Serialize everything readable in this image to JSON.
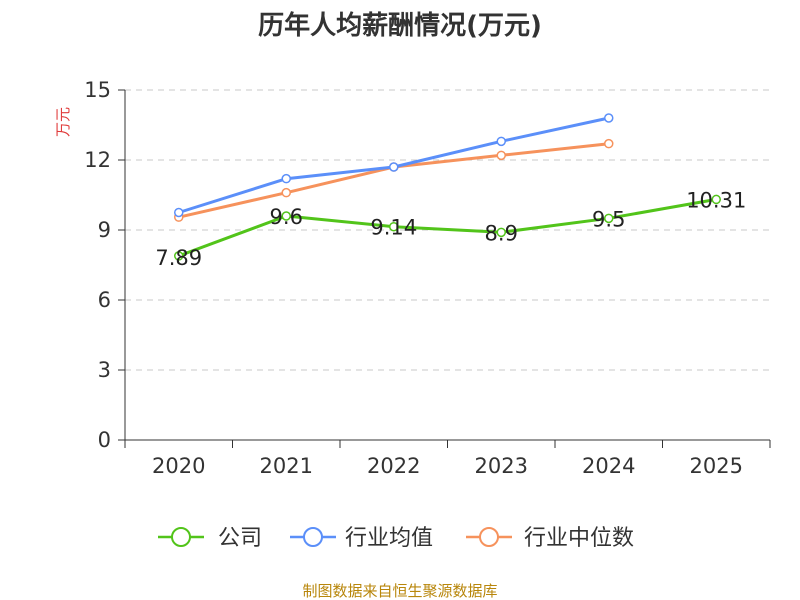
{
  "chart_data": {
    "type": "line",
    "title": "历年人均薪酬情况(万元)",
    "xlabel": "",
    "ylabel": "万元",
    "categories": [
      "2020",
      "2021",
      "2022",
      "2023",
      "2024",
      "2025"
    ],
    "ylim": [
      0,
      15
    ],
    "yticks": [
      0,
      3,
      6,
      9,
      12,
      15
    ],
    "grid": true,
    "legend_position": "bottom",
    "series": [
      {
        "name": "公司",
        "color": "#52c41a",
        "values": [
          7.89,
          9.6,
          9.14,
          8.9,
          9.5,
          10.31
        ],
        "data_labels": [
          "7.89",
          "9.6",
          "9.14",
          "8.9",
          "9.5",
          "10.31"
        ]
      },
      {
        "name": "行业均值",
        "color": "#5b8ff9",
        "values": [
          9.75,
          11.2,
          11.7,
          12.8,
          13.8,
          null
        ]
      },
      {
        "name": "行业中位数",
        "color": "#f6925c",
        "values": [
          9.55,
          10.6,
          11.7,
          12.2,
          12.7,
          null
        ]
      }
    ]
  },
  "footer": {
    "source": "制图数据来自恒生聚源数据库"
  }
}
